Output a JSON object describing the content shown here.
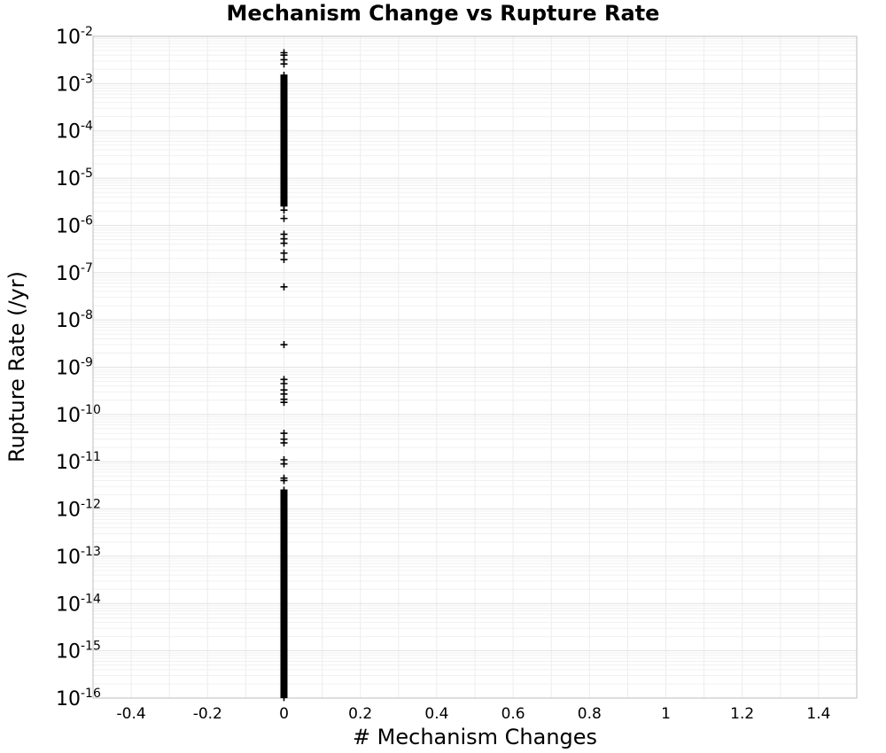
{
  "chart_data": {
    "type": "scatter",
    "title": "Mechanism Change vs Rupture Rate",
    "xlabel": "# Mechanism Changes",
    "ylabel": "Rupture Rate (/yr)",
    "xlim": [
      -0.5,
      1.5
    ],
    "ylim": [
      1e-16,
      0.01
    ],
    "yscale": "log",
    "grid": true,
    "marker": "+",
    "marker_color": "#000000",
    "x_ticks": [
      "-0.4",
      "-0.2",
      "0",
      "0.2",
      "0.4",
      "0.6",
      "0.8",
      "1",
      "1.2",
      "1.4"
    ],
    "y_ticks": [
      {
        "base": "10",
        "exp": "-2"
      },
      {
        "base": "10",
        "exp": "-3"
      },
      {
        "base": "10",
        "exp": "-4"
      },
      {
        "base": "10",
        "exp": "-5"
      },
      {
        "base": "10",
        "exp": "-6"
      },
      {
        "base": "10",
        "exp": "-7"
      },
      {
        "base": "10",
        "exp": "-8"
      },
      {
        "base": "10",
        "exp": "-9"
      },
      {
        "base": "10",
        "exp": "-10"
      },
      {
        "base": "10",
        "exp": "-11"
      },
      {
        "base": "10",
        "exp": "-12"
      },
      {
        "base": "10",
        "exp": "-13"
      },
      {
        "base": "10",
        "exp": "-14"
      },
      {
        "base": "10",
        "exp": "-15"
      },
      {
        "base": "10",
        "exp": "-16"
      }
    ],
    "series": [
      {
        "x": [
          0
        ],
        "points_sparse": [
          0.0045,
          0.004,
          0.0032,
          0.0026,
          2.1e-06,
          1.4e-06,
          6.5e-07,
          5.2e-07,
          4.2e-07,
          2.6e-07,
          1.9e-07,
          5e-08,
          3e-09,
          5.5e-10,
          4.5e-10,
          3.3e-10,
          2.7e-10,
          2.1e-10,
          1.8e-10,
          4e-11,
          3e-11,
          2.5e-11,
          1.1e-11,
          9e-12,
          4.5e-12,
          4e-12
        ],
        "dense_ranges": [
          [
            2.5e-06,
            0.0015
          ],
          [
            1e-16,
            2.5e-12
          ]
        ]
      }
    ]
  }
}
